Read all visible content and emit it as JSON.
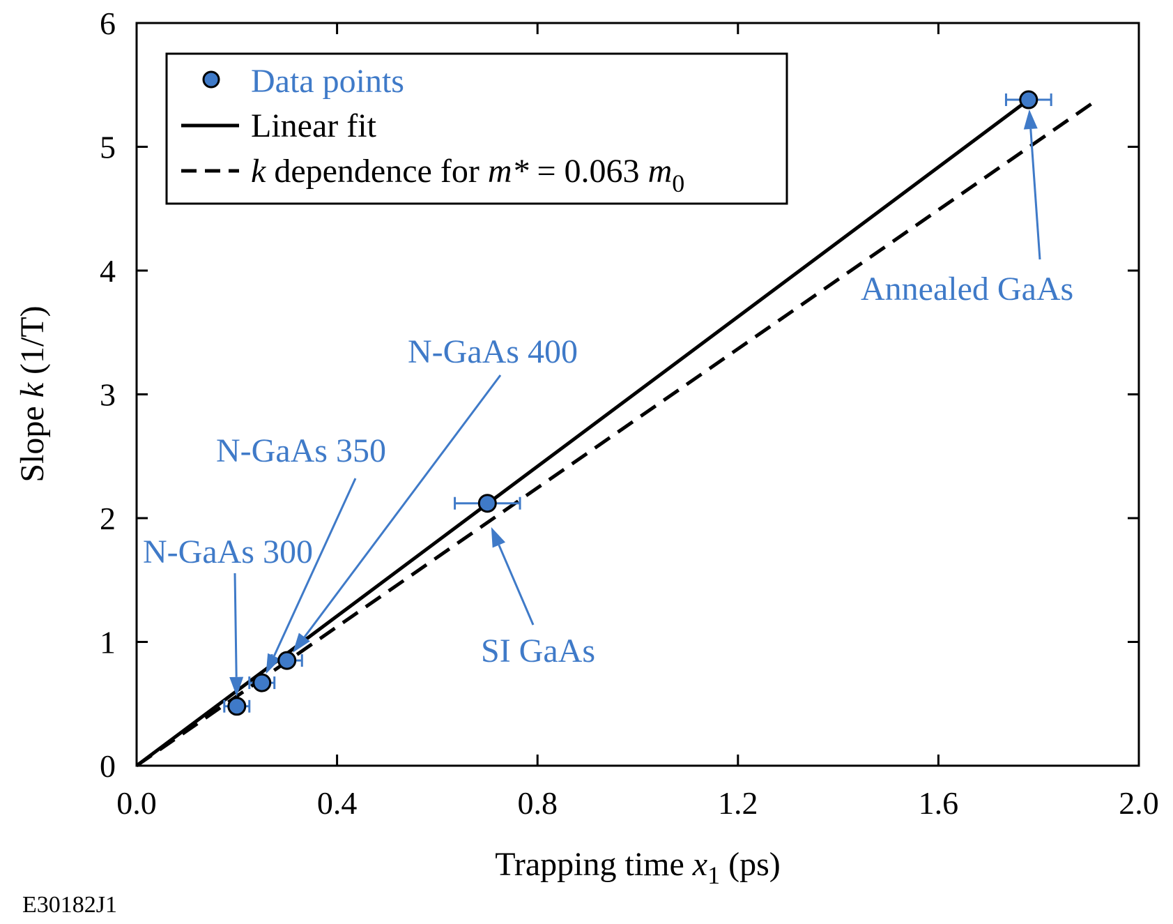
{
  "chart_data": {
    "type": "scatter",
    "xlabel": "Trapping time",
    "xlabel_symbol": "x",
    "xlabel_subscript": "1",
    "xlabel_unit": "(ps)",
    "ylabel": "Slope",
    "ylabel_symbol": "k",
    "ylabel_unit": "(1/T)",
    "xlim": [
      0,
      2.0
    ],
    "ylim": [
      0,
      6
    ],
    "x_ticks": [
      0.0,
      0.4,
      0.8,
      1.2,
      1.6,
      2.0
    ],
    "x_tick_labels": [
      "0.0",
      "0.4",
      "0.8",
      "1.2",
      "1.6",
      "2.0"
    ],
    "y_ticks": [
      0,
      1,
      2,
      3,
      4,
      5,
      6
    ],
    "y_tick_labels": [
      "0",
      "1",
      "2",
      "3",
      "4",
      "5",
      "6"
    ],
    "series": [
      {
        "name": "Data points",
        "kind": "scatter",
        "color": "#3f7ac8",
        "x": [
          0.2,
          0.25,
          0.3,
          0.7,
          1.78
        ],
        "y": [
          0.48,
          0.67,
          0.85,
          2.12,
          5.38
        ],
        "x_err": [
          0.025,
          0.025,
          0.03,
          0.065,
          0.045
        ]
      },
      {
        "name": "Linear fit",
        "kind": "line",
        "style": "solid",
        "color": "#000000",
        "x": [
          0.0,
          1.78
        ],
        "y": [
          0.0,
          5.38
        ]
      },
      {
        "name": "k dependence for m* = 0.063 m0",
        "kind": "line",
        "style": "dashed",
        "color": "#000000",
        "x": [
          0.0,
          1.91
        ],
        "y": [
          0.0,
          5.36
        ]
      }
    ],
    "legend": {
      "placement": "top-left",
      "entries": [
        {
          "text": "Data points"
        },
        {
          "text": "Linear fit"
        },
        {
          "symbol_k": "k",
          "text_mid": " dependence for ",
          "symbol_m": "m*",
          "text_eq": " = 0.063 ",
          "symbol_m0": "m",
          "sub_0": "0"
        }
      ]
    },
    "annotations": [
      {
        "text": "Annealed GaAs",
        "target_x": 1.78,
        "target_y": 5.38
      },
      {
        "text": "N-GaAs 400",
        "target_x": 0.3,
        "target_y": 0.85
      },
      {
        "text": "N-GaAs 350",
        "target_x": 0.25,
        "target_y": 0.67
      },
      {
        "text": "N-GaAs 300",
        "target_x": 0.2,
        "target_y": 0.48
      },
      {
        "text": "SI GaAs",
        "target_x": 0.7,
        "target_y": 2.0
      }
    ]
  },
  "figure_id": "E30182J1",
  "colors": {
    "accent": "#3f7ac8",
    "marker_fill": "#3f7ac8",
    "axis": "#000000"
  }
}
